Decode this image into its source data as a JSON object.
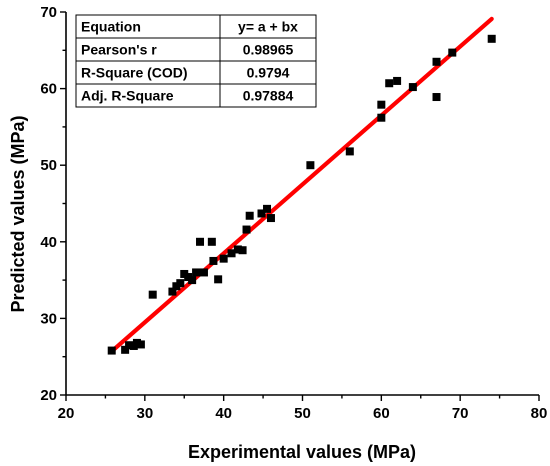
{
  "chart_data": {
    "type": "scatter",
    "title": "",
    "xlabel": "Experimental values (MPa)",
    "ylabel": "Predicted values (MPa)",
    "xlim": [
      20,
      80
    ],
    "ylim": [
      20,
      70
    ],
    "x_ticks": [
      20,
      30,
      40,
      50,
      60,
      70,
      80
    ],
    "y_ticks": [
      20,
      30,
      40,
      50,
      60,
      70
    ],
    "grid": false,
    "marker_color": "#000000",
    "fit_line_color": "#ff0000",
    "series": [
      {
        "values": [
          {
            "x": 25.8,
            "y": 25.8
          },
          {
            "x": 27.5,
            "y": 25.9
          },
          {
            "x": 28.0,
            "y": 26.5
          },
          {
            "x": 28.6,
            "y": 26.4
          },
          {
            "x": 29.0,
            "y": 26.8
          },
          {
            "x": 29.5,
            "y": 26.6
          },
          {
            "x": 31.0,
            "y": 33.1
          },
          {
            "x": 33.5,
            "y": 33.5
          },
          {
            "x": 34.0,
            "y": 34.2
          },
          {
            "x": 34.5,
            "y": 34.6
          },
          {
            "x": 35.0,
            "y": 35.8
          },
          {
            "x": 35.5,
            "y": 35.4
          },
          {
            "x": 36.0,
            "y": 35.0
          },
          {
            "x": 36.5,
            "y": 36.0
          },
          {
            "x": 37.0,
            "y": 40.0
          },
          {
            "x": 37.5,
            "y": 36.0
          },
          {
            "x": 38.5,
            "y": 40.0
          },
          {
            "x": 38.7,
            "y": 37.5
          },
          {
            "x": 39.3,
            "y": 35.1
          },
          {
            "x": 40.0,
            "y": 37.8
          },
          {
            "x": 41.0,
            "y": 38.5
          },
          {
            "x": 41.8,
            "y": 39.0
          },
          {
            "x": 42.4,
            "y": 38.9
          },
          {
            "x": 42.9,
            "y": 41.6
          },
          {
            "x": 43.3,
            "y": 43.4
          },
          {
            "x": 44.8,
            "y": 43.7
          },
          {
            "x": 45.5,
            "y": 44.3
          },
          {
            "x": 46.0,
            "y": 43.1
          },
          {
            "x": 51.0,
            "y": 50.0
          },
          {
            "x": 56.0,
            "y": 51.8
          },
          {
            "x": 60.0,
            "y": 57.9
          },
          {
            "x": 60.0,
            "y": 56.2
          },
          {
            "x": 61.0,
            "y": 60.7
          },
          {
            "x": 62.0,
            "y": 61.0
          },
          {
            "x": 64.0,
            "y": 60.2
          },
          {
            "x": 67.0,
            "y": 63.5
          },
          {
            "x": 67.0,
            "y": 58.9
          },
          {
            "x": 69.0,
            "y": 64.7
          },
          {
            "x": 74.0,
            "y": 66.5
          }
        ]
      }
    ],
    "fit_line": {
      "x_start": 25.8,
      "y_start": 25.7,
      "x_end": 74.0,
      "y_end": 69.1
    },
    "stats_table": {
      "rows": [
        [
          "Equation",
          "y= a + bx"
        ],
        [
          "Pearson's r",
          "0.98965"
        ],
        [
          "R-Square (COD)",
          "0.9794"
        ],
        [
          "Adj. R-Square",
          "0.97884"
        ]
      ]
    }
  }
}
